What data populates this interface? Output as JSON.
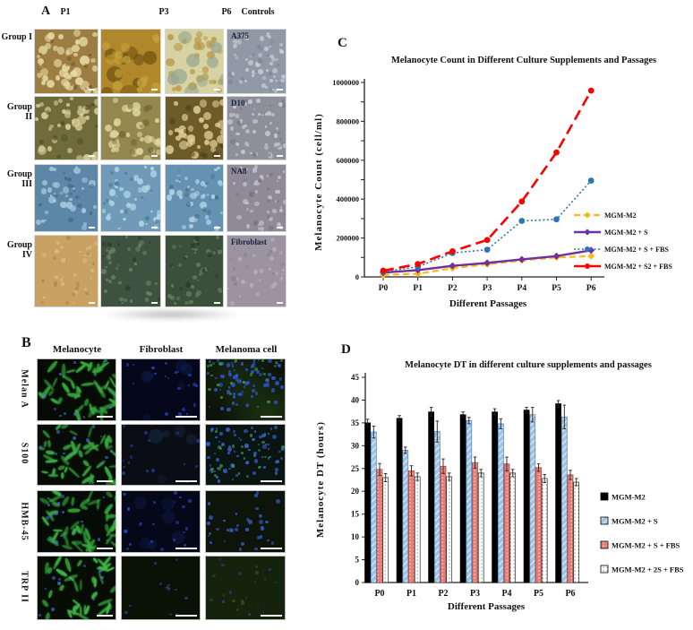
{
  "panel_a": {
    "label": "A",
    "column_headers": [
      "P1",
      "P3",
      "P6",
      "Controls"
    ],
    "row_headers": [
      "Group I",
      "Group II",
      "Group III",
      "Group IV"
    ],
    "control_labels": [
      "A375",
      "D10",
      "NA8",
      "Fibroblast"
    ]
  },
  "panel_b": {
    "label": "B",
    "column_headers": [
      "Melanocyte",
      "Fibroblast",
      "Melanoma cell"
    ],
    "row_headers": [
      "Melan A",
      "S100",
      "HMB-45",
      "TRP II"
    ]
  },
  "chart_data": [
    {
      "type": "line",
      "panel": "C",
      "title": "Melanocyte Count in Different Culture Supplements and Passages",
      "x_categories": [
        "P0",
        "P1",
        "P2",
        "P3",
        "P4",
        "P5",
        "P6"
      ],
      "xlabel": "Different Passages",
      "ylabel": "Melanocyte Count (cell/ml)",
      "ylim": [
        0,
        1000000
      ],
      "ytick_step": 200000,
      "ytick_labels": [
        "0",
        "200000",
        "400000",
        "600000",
        "800000",
        "1000000"
      ],
      "grid": false,
      "legend_position": "right",
      "series": [
        {
          "name": "MGM-M2",
          "color": "#FDB813",
          "style": "dashed",
          "marker": "diamond",
          "values": [
            10000,
            16000,
            45000,
            65000,
            85000,
            100000,
            107000
          ]
        },
        {
          "name": "MGM-M2 + S",
          "color": "#7030A0",
          "style": "solid",
          "marker": "diamond",
          "values": [
            22000,
            35000,
            57000,
            72000,
            90000,
            107000,
            137000
          ]
        },
        {
          "name": "MGM-M2 + S + FBS",
          "color": "#2E75B6",
          "style": "dotted",
          "marker": "circle",
          "values": [
            27000,
            52000,
            123000,
            140000,
            288000,
            296000,
            495000
          ]
        },
        {
          "name": "MGM-M2 + S2 + FBS",
          "color": "#FF0000",
          "style": "longdash",
          "marker": "circle",
          "values": [
            32000,
            66000,
            132000,
            190000,
            388000,
            640000,
            958000
          ]
        }
      ]
    },
    {
      "type": "bar",
      "panel": "D",
      "title": "Melanocyte DT in different culture supplements and passages",
      "categories": [
        "P0",
        "P1",
        "P2",
        "P3",
        "P4",
        "P5",
        "P6"
      ],
      "xlabel": "Different Passages",
      "ylabel": "Melanocyte DT (hours)",
      "ylim": [
        0,
        45
      ],
      "ytick_step": 5,
      "grid": false,
      "legend_position": "right",
      "series": [
        {
          "name": "MGM-M2",
          "fill": "#000000",
          "pattern": "solid",
          "values": [
            35.0,
            36.0,
            37.4,
            36.8,
            37.4,
            37.8,
            39.2
          ],
          "errors": [
            0.8,
            0.6,
            1.0,
            0.6,
            0.7,
            0.6,
            0.7
          ]
        },
        {
          "name": "MGM-M2 + S",
          "fill": "#9DC3E6",
          "pattern": "diagonal",
          "values": [
            33.0,
            29.0,
            33.1,
            35.5,
            34.8,
            36.8,
            36.3
          ],
          "errors": [
            1.3,
            0.7,
            2.3,
            0.7,
            1.1,
            1.6,
            2.6
          ]
        },
        {
          "name": "MGM-M2 + S + FBS",
          "fill": "#E97B72",
          "pattern": "dots-red",
          "values": [
            24.8,
            24.5,
            25.5,
            26.3,
            26.0,
            25.2,
            23.6
          ],
          "errors": [
            1.3,
            1.1,
            1.6,
            1.2,
            1.5,
            0.8,
            1.0
          ]
        },
        {
          "name": "MGM-M2 + 2S + FBS",
          "fill": "#FFFFFF",
          "pattern": "dots-grey",
          "values": [
            23.0,
            23.2,
            23.2,
            24.0,
            24.0,
            22.8,
            22.0
          ],
          "errors": [
            0.9,
            0.8,
            0.8,
            0.8,
            0.8,
            0.9,
            0.8
          ]
        }
      ]
    }
  ],
  "tile_styles": {
    "a": [
      {
        "bg": "#9c7d42",
        "spots": [
          [
            "#e9dca6",
            42,
            2,
            6,
            0.9
          ],
          [
            "#66501e",
            12,
            1,
            3,
            0.7
          ]
        ]
      },
      {
        "bg": "#b0872a",
        "spots": [
          [
            "#6e500f",
            9,
            5,
            10,
            0.75
          ],
          [
            "#c7a23f",
            16,
            3,
            6,
            0.8
          ]
        ]
      },
      {
        "bg": "#d6d2a2",
        "spots": [
          [
            "#b59a4a",
            28,
            2,
            5,
            0.85
          ],
          [
            "#9aa792",
            9,
            5,
            9,
            0.8
          ]
        ]
      },
      {
        "bg": "#9099a6",
        "spots": [
          [
            "#c9ced6",
            48,
            1,
            3,
            0.9
          ],
          [
            "#7d8692",
            18,
            1,
            3,
            0.8
          ]
        ]
      },
      {
        "bg": "#6f6b3a",
        "spots": [
          [
            "#ddd29a",
            36,
            2,
            5,
            0.9
          ],
          [
            "#4c491f",
            10,
            2,
            4,
            0.7
          ]
        ]
      },
      {
        "bg": "#93894e",
        "spots": [
          [
            "#e0d6a2",
            32,
            2,
            5,
            0.9
          ],
          [
            "#6a6130",
            10,
            2,
            4,
            0.7
          ]
        ]
      },
      {
        "bg": "#6d5c2a",
        "spots": [
          [
            "#e3d096",
            32,
            2,
            5,
            0.9
          ],
          [
            "#4a3d16",
            9,
            2,
            4,
            0.7
          ]
        ]
      },
      {
        "bg": "#8f8f9c",
        "spots": [
          [
            "#cdced8",
            48,
            1,
            3,
            0.9
          ],
          [
            "#767685",
            14,
            1,
            3,
            0.8
          ]
        ]
      },
      {
        "bg": "#5d87a6",
        "spots": [
          [
            "#a8cbe0",
            34,
            1,
            4,
            0.9
          ],
          [
            "#3c6584",
            14,
            1,
            3,
            0.8
          ]
        ]
      },
      {
        "bg": "#6f9ab8",
        "spots": [
          [
            "#b6d7e8",
            36,
            1,
            4,
            0.9
          ],
          [
            "#4a7694",
            14,
            1,
            3,
            0.8
          ]
        ]
      },
      {
        "bg": "#6592b0",
        "spots": [
          [
            "#b0d3e6",
            36,
            1,
            4,
            0.9
          ],
          [
            "#426e8c",
            14,
            1,
            3,
            0.8
          ]
        ]
      },
      {
        "bg": "#8e8a98",
        "spots": [
          [
            "#c6c4d0",
            42,
            1,
            3,
            0.9
          ],
          [
            "#747080",
            12,
            1,
            3,
            0.8
          ]
        ]
      },
      {
        "bg": "#c8a163",
        "spots": [
          [
            "#dabd8a",
            22,
            1,
            3,
            0.85
          ],
          [
            "#a57f42",
            14,
            1,
            3,
            0.7
          ]
        ]
      },
      {
        "bg": "#3e523f",
        "spots": [
          [
            "#6f8a6a",
            34,
            1,
            3,
            0.8
          ],
          [
            "#2a3a2b",
            12,
            1,
            3,
            0.8
          ]
        ]
      },
      {
        "bg": "#3b4f3b",
        "spots": [
          [
            "#6a8566",
            34,
            1,
            3,
            0.8
          ],
          [
            "#283827",
            12,
            1,
            3,
            0.8
          ]
        ]
      },
      {
        "bg": "#9b93a0",
        "spots": [
          [
            "#b8b2bd",
            24,
            1,
            3,
            0.85
          ],
          [
            "#837b89",
            12,
            1,
            3,
            0.7
          ]
        ]
      }
    ],
    "b": [
      {
        "bg": "#060b05",
        "cells": [
          "#36a83e",
          46
        ],
        "spots": [
          [
            "#4a6fe0",
            10,
            1,
            2,
            0.8
          ]
        ],
        "sb": 18
      },
      {
        "bg": "#05081a",
        "spots": [
          [
            "#2b4bd0",
            20,
            1,
            2,
            0.8
          ],
          [
            "#1a2f80",
            6,
            4,
            8,
            0.3
          ]
        ],
        "sb": 24
      },
      {
        "bg": "#0b1408",
        "haze": "#2c4a1e",
        "corner": "#1d3312",
        "spots": [
          [
            "#3056d8",
            70,
            1,
            2.5,
            0.9
          ],
          [
            "#3fae3f",
            22,
            1,
            2,
            0.8
          ]
        ],
        "bias": "top",
        "sb": 24
      },
      {
        "bg": "#070c06",
        "cells": [
          "#3aa944",
          44
        ],
        "spots": [
          [
            "#4a6fe0",
            12,
            1,
            2,
            0.8
          ]
        ],
        "sb": 18
      },
      {
        "bg": "#0a0d14",
        "spots": [
          [
            "#2b4bd0",
            16,
            1,
            2,
            0.7
          ],
          [
            "#24406e",
            5,
            4,
            8,
            0.3
          ]
        ],
        "sb": 24
      },
      {
        "bg": "#0a1410",
        "spots": [
          [
            "#3b63d8",
            64,
            1,
            2.5,
            0.9
          ],
          [
            "#3fae5f",
            26,
            1,
            2,
            0.7
          ]
        ],
        "sb": 24
      },
      {
        "bg": "#060b05",
        "cells": [
          "#38ab40",
          48
        ],
        "spots": [
          [
            "#4a6fe0",
            14,
            1,
            2,
            0.85
          ]
        ],
        "sb": 18
      },
      {
        "bg": "#050818",
        "spots": [
          [
            "#2b4bd0",
            22,
            1,
            2,
            0.8
          ],
          [
            "#1a2f80",
            6,
            4,
            8,
            0.3
          ]
        ],
        "sb": 24
      },
      {
        "bg": "#0d1409",
        "spots": [
          [
            "#3b63d8",
            34,
            1,
            2.5,
            0.85
          ]
        ],
        "sb": 24
      },
      {
        "bg": "#070c05",
        "cells": [
          "#3fb647",
          40
        ],
        "spots": [
          [
            "#4a6fe0",
            10,
            1,
            2,
            0.8
          ]
        ],
        "sb": 18
      },
      {
        "bg": "#0a1206",
        "spots": [
          [
            "#3553c0",
            12,
            1,
            2,
            0.6
          ]
        ],
        "sb": 24
      },
      {
        "bg": "#15230c",
        "spots": [
          [
            "#3553c0",
            12,
            1,
            2,
            0.6
          ],
          [
            "#3f7a2f",
            10,
            1,
            2,
            0.5
          ]
        ],
        "sb": 24
      }
    ]
  }
}
